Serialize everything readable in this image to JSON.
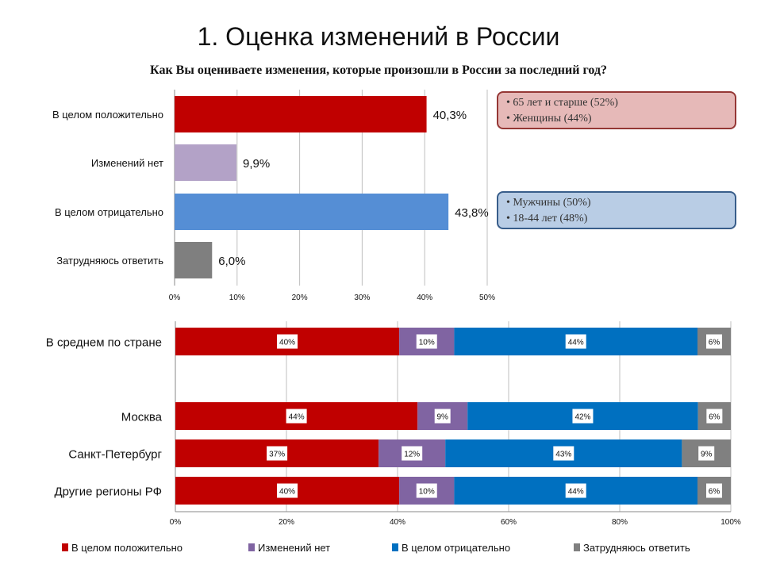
{
  "title": "1. Оценка изменений в России",
  "subtitle": "Как Вы оцениваете изменения, которые произошли в России за последний год?",
  "colors": {
    "positive": "#c00000",
    "none": "#8064a2",
    "negative": "#0070c0",
    "unsure": "#808080",
    "top_none": "#b3a2c7",
    "top_negative": "#558ed5",
    "top_unsure": "#7f7f7f"
  },
  "notes": [
    {
      "items": [
        "• 65 лет и старше (52%)",
        "• Женщины (44%)"
      ],
      "bg": "#e6b9b8",
      "border": "#953735"
    },
    {
      "items": [
        "• Мужчины (50%)",
        "• 18-44 лет (48%)"
      ],
      "bg": "#b9cde5",
      "border": "#385d8a"
    }
  ],
  "chart_data": [
    {
      "type": "bar",
      "orientation": "horizontal",
      "categories": [
        "В целом положительно",
        "Изменений нет",
        "В целом отрицательно",
        "Затрудняюсь ответить"
      ],
      "values": [
        40.3,
        9.9,
        43.8,
        6.0
      ],
      "labels": [
        "40,3%",
        "9,9%",
        "43,8%",
        "6,0%"
      ],
      "xlim": [
        0,
        50
      ],
      "xticks": [
        "0%",
        "10%",
        "20%",
        "30%",
        "40%",
        "50%"
      ],
      "grid": true
    },
    {
      "type": "bar",
      "orientation": "horizontal",
      "stacked": true,
      "categories": [
        "В среднем по стране",
        "",
        "Москва",
        "Санкт-Петербург",
        "Другие регионы РФ"
      ],
      "series": [
        {
          "name": "В целом положительно",
          "values": [
            40.3,
            null,
            43.6,
            36.6,
            40.3
          ],
          "labels": [
            "40%",
            "",
            "44%",
            "37%",
            "40%"
          ]
        },
        {
          "name": "Изменений нет",
          "values": [
            9.9,
            null,
            9.0,
            12.0,
            9.9
          ],
          "labels": [
            "10%",
            "",
            "9%",
            "12%",
            "10%"
          ]
        },
        {
          "name": "В целом отрицательно",
          "values": [
            43.8,
            null,
            41.5,
            42.6,
            43.8
          ],
          "labels": [
            "44%",
            "",
            "42%",
            "43%",
            "44%"
          ]
        },
        {
          "name": "Затрудняюсь ответить",
          "values": [
            6.0,
            null,
            5.9,
            8.8,
            6.0
          ],
          "labels": [
            "6%",
            "",
            "6%",
            "9%",
            "6%"
          ]
        }
      ],
      "xlim": [
        0,
        100
      ],
      "xticks": [
        "0%",
        "20%",
        "40%",
        "60%",
        "80%",
        "100%"
      ],
      "grid": true,
      "legend": "bottom"
    }
  ]
}
